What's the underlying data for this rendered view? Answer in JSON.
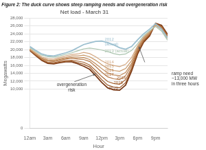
{
  "chart_data": {
    "type": "line",
    "title": "Figure 2: The duck curve shows steep ramping needs and overgeneration risk",
    "subtitle": "Net load - March 31",
    "x_label": "Hour",
    "y_label": "Megawatts",
    "x": [
      0,
      1,
      2,
      3,
      4,
      5,
      6,
      7,
      8,
      9,
      10,
      11,
      12,
      13,
      14,
      15,
      16,
      17,
      18,
      19,
      20,
      21,
      22,
      23
    ],
    "xlim": [
      0,
      23
    ],
    "xticks": [
      {
        "value": 0,
        "label": "12am"
      },
      {
        "value": 3,
        "label": "3am"
      },
      {
        "value": 6,
        "label": "6am"
      },
      {
        "value": 9,
        "label": "9am"
      },
      {
        "value": 12,
        "label": "12pm"
      },
      {
        "value": 15,
        "label": "3pm"
      },
      {
        "value": 18,
        "label": "6pm"
      },
      {
        "value": 21,
        "label": "9pm"
      }
    ],
    "ylim": [
      0,
      28000
    ],
    "yticks": [
      0,
      {
        "value": 10000,
        "label": "10,000"
      },
      {
        "value": 12000,
        "label": "12,000"
      },
      {
        "value": 14000,
        "label": "14,000"
      },
      {
        "value": 16000,
        "label": "16,000"
      },
      {
        "value": 18000,
        "label": "18,000"
      },
      {
        "value": 20000,
        "label": "20,000"
      },
      {
        "value": 22000,
        "label": "22,000"
      },
      {
        "value": 24000,
        "label": "24,000"
      },
      {
        "value": 26000,
        "label": "26,000"
      },
      {
        "value": 28000,
        "label": "28,000"
      }
    ],
    "grid": true,
    "series": [
      {
        "name": "2012\n(actual)",
        "color": "#9bbfcf",
        "values": [
          20800,
          19800,
          18900,
          18500,
          18400,
          18800,
          19200,
          19700,
          20500,
          21300,
          21700,
          22100,
          22200,
          21800,
          21200,
          20500,
          20100,
          20800,
          22500,
          24000,
          25200,
          26600,
          25200,
          23000
        ]
      },
      {
        "name": "2013 (actual)",
        "color": "#aac4ae",
        "values": [
          20500,
          19500,
          18600,
          18200,
          18100,
          18400,
          18800,
          19200,
          19700,
          20200,
          20400,
          20200,
          19900,
          19500,
          19000,
          18700,
          18900,
          19800,
          21500,
          23500,
          24800,
          25900,
          24700,
          22400
        ]
      },
      {
        "name": "2014",
        "color": "#d4a882",
        "values": [
          20200,
          19200,
          18200,
          17700,
          17600,
          18000,
          18400,
          18800,
          18900,
          19300,
          19000,
          18200,
          17200,
          16400,
          16000,
          15700,
          16300,
          18000,
          21000,
          23200,
          24600,
          26200,
          25100,
          22800
        ]
      },
      {
        "name": "2015",
        "color": "#c89868",
        "values": [
          20100,
          19000,
          17900,
          17400,
          17300,
          17700,
          18000,
          18400,
          18400,
          18600,
          18200,
          17300,
          16200,
          15200,
          14700,
          14500,
          15200,
          17200,
          20700,
          23000,
          24500,
          26200,
          25200,
          22900
        ]
      },
      {
        "name": "2016",
        "color": "#be8858",
        "values": [
          20000,
          18900,
          17800,
          17200,
          17100,
          17500,
          17800,
          18000,
          17900,
          18000,
          17500,
          16400,
          15200,
          14100,
          13600,
          13400,
          14200,
          16500,
          20300,
          22800,
          24300,
          26300,
          25400,
          23100
        ]
      },
      {
        "name": "2017",
        "color": "#b47848",
        "values": [
          20000,
          18800,
          17700,
          17100,
          17000,
          17300,
          17600,
          17800,
          17600,
          17500,
          17000,
          15700,
          14300,
          13100,
          12600,
          12400,
          13400,
          16000,
          20000,
          22600,
          24100,
          26400,
          25600,
          23300
        ]
      },
      {
        "name": "2018",
        "color": "#a86838",
        "values": [
          19900,
          18700,
          17500,
          16800,
          16700,
          17000,
          17200,
          17300,
          17100,
          16800,
          16100,
          14700,
          13200,
          11900,
          11400,
          11200,
          12400,
          15400,
          19600,
          22300,
          23900,
          26500,
          25800,
          23500
        ]
      },
      {
        "name": "2019",
        "color": "#9a5828",
        "values": [
          19900,
          18600,
          17400,
          16700,
          16500,
          16800,
          17000,
          17100,
          16700,
          16300,
          15600,
          14000,
          12400,
          11000,
          10500,
          10300,
          11600,
          15000,
          19300,
          22100,
          23700,
          26600,
          26000,
          23700
        ]
      },
      {
        "name": "2020",
        "color": "#7a3a18",
        "values": [
          19800,
          18500,
          17300,
          16500,
          16400,
          16700,
          16900,
          16900,
          16400,
          15800,
          15000,
          13400,
          11700,
          10300,
          9800,
          9700,
          11000,
          14600,
          18900,
          21900,
          23500,
          26700,
          26200,
          23900
        ]
      }
    ],
    "annotations": [
      {
        "text": "overgeneration\nrisk"
      },
      {
        "text": "ramp need\n~13,000 MW\nin three hours"
      }
    ]
  }
}
